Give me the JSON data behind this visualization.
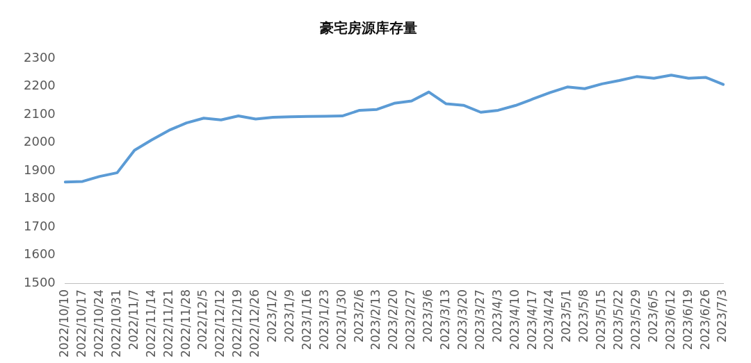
{
  "chart_data": {
    "type": "line",
    "title": "豪宅房源库存量",
    "categories": [
      "2022/10/10",
      "2022/10/17",
      "2022/10/24",
      "2022/10/31",
      "2022/11/7",
      "2022/11/14",
      "2022/11/21",
      "2022/11/28",
      "2022/12/5",
      "2022/12/12",
      "2022/12/19",
      "2022/12/26",
      "2023/1/2",
      "2023/1/9",
      "2023/1/16",
      "2023/1/23",
      "2023/1/30",
      "2023/2/6",
      "2023/2/13",
      "2023/2/20",
      "2023/2/27",
      "2023/3/6",
      "2023/3/13",
      "2023/3/20",
      "2023/3/27",
      "2023/4/3",
      "2023/4/10",
      "2023/4/17",
      "2023/4/24",
      "2023/5/1",
      "2023/5/8",
      "2023/5/15",
      "2023/5/22",
      "2023/5/29",
      "2023/6/5",
      "2023/6/12",
      "2023/6/19",
      "2023/6/26",
      "2023/7/3"
    ],
    "series": [
      {
        "color": "#5b9bd5",
        "values": [
          1860,
          1862,
          1880,
          1893,
          1973,
          2010,
          2044,
          2070,
          2087,
          2081,
          2095,
          2084,
          2090,
          2092,
          2093,
          2094,
          2095,
          2115,
          2118,
          2140,
          2148,
          2180,
          2138,
          2133,
          2108,
          2115,
          2132,
          2155,
          2178,
          2198,
          2192,
          2209,
          2221,
          2235,
          2229,
          2240,
          2229,
          2232,
          2207
        ]
      }
    ],
    "ylim": [
      1500,
      2300
    ],
    "yticks": [
      1500,
      1600,
      1700,
      1800,
      1900,
      2000,
      2100,
      2200,
      2300
    ],
    "grid": false,
    "legend": false,
    "marker": "none",
    "line_style": "solid"
  }
}
